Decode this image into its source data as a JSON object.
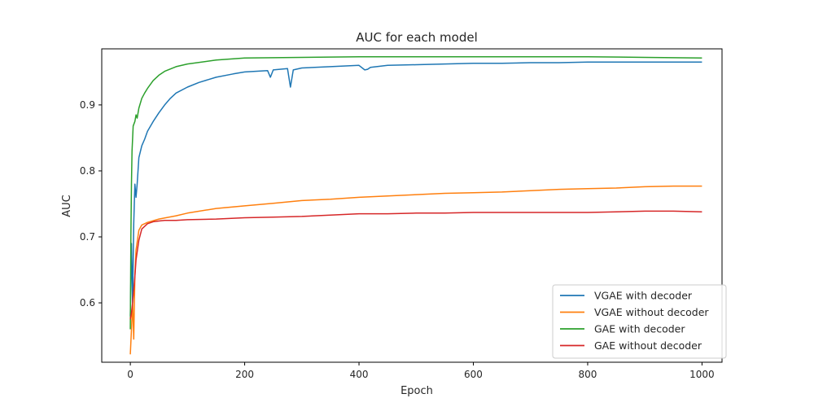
{
  "chart_data": {
    "type": "line",
    "title": "AUC for each model",
    "xlabel": "Epoch",
    "ylabel": "AUC",
    "xlim": [
      -50,
      1035
    ],
    "ylim": [
      0.51,
      0.985
    ],
    "xticks": [
      0,
      200,
      400,
      600,
      800,
      1000
    ],
    "yticks": [
      0.6,
      0.7,
      0.8,
      0.9
    ],
    "grid": false,
    "legend_position": "lower-right",
    "series": [
      {
        "name": "VGAE with decoder",
        "color": "#1f77b4",
        "x": [
          0,
          2,
          4,
          6,
          8,
          10,
          12,
          15,
          20,
          25,
          30,
          40,
          50,
          60,
          70,
          80,
          100,
          120,
          150,
          180,
          200,
          240,
          245,
          250,
          275,
          280,
          285,
          300,
          350,
          400,
          410,
          415,
          420,
          450,
          500,
          550,
          600,
          650,
          700,
          750,
          800,
          850,
          900,
          950,
          1000
        ],
        "y": [
          0.58,
          0.69,
          0.6,
          0.72,
          0.78,
          0.76,
          0.78,
          0.82,
          0.838,
          0.848,
          0.86,
          0.875,
          0.888,
          0.9,
          0.91,
          0.918,
          0.927,
          0.934,
          0.942,
          0.947,
          0.95,
          0.952,
          0.942,
          0.953,
          0.955,
          0.927,
          0.953,
          0.956,
          0.958,
          0.96,
          0.953,
          0.954,
          0.957,
          0.96,
          0.961,
          0.962,
          0.963,
          0.963,
          0.964,
          0.964,
          0.965,
          0.965,
          0.965,
          0.965,
          0.965
        ]
      },
      {
        "name": "VGAE without decoder",
        "color": "#ff7f0e",
        "x": [
          0,
          2,
          4,
          6,
          8,
          10,
          15,
          20,
          30,
          50,
          80,
          100,
          150,
          200,
          250,
          300,
          350,
          400,
          450,
          500,
          550,
          600,
          650,
          700,
          750,
          800,
          850,
          900,
          950,
          1000
        ],
        "y": [
          0.522,
          0.56,
          0.6,
          0.545,
          0.64,
          0.68,
          0.71,
          0.718,
          0.722,
          0.727,
          0.732,
          0.736,
          0.743,
          0.747,
          0.751,
          0.755,
          0.757,
          0.76,
          0.762,
          0.764,
          0.766,
          0.767,
          0.768,
          0.77,
          0.772,
          0.773,
          0.774,
          0.776,
          0.777,
          0.777
        ]
      },
      {
        "name": "GAE with decoder",
        "color": "#2ca02c",
        "x": [
          0,
          1,
          2,
          3,
          5,
          8,
          10,
          12,
          15,
          20,
          25,
          30,
          40,
          50,
          60,
          80,
          100,
          150,
          200,
          300,
          400,
          500,
          600,
          700,
          800,
          900,
          1000
        ],
        "y": [
          0.56,
          0.7,
          0.78,
          0.83,
          0.868,
          0.875,
          0.885,
          0.88,
          0.895,
          0.91,
          0.918,
          0.925,
          0.937,
          0.945,
          0.951,
          0.958,
          0.962,
          0.968,
          0.971,
          0.972,
          0.973,
          0.973,
          0.973,
          0.973,
          0.973,
          0.972,
          0.971
        ]
      },
      {
        "name": "GAE without decoder",
        "color": "#d62728",
        "x": [
          0,
          2,
          4,
          6,
          8,
          10,
          15,
          20,
          30,
          40,
          50,
          60,
          80,
          100,
          150,
          200,
          250,
          300,
          350,
          400,
          450,
          500,
          550,
          600,
          650,
          700,
          750,
          800,
          850,
          900,
          950,
          1000
        ],
        "y": [
          0.575,
          0.585,
          0.6,
          0.62,
          0.64,
          0.665,
          0.695,
          0.712,
          0.72,
          0.723,
          0.724,
          0.725,
          0.725,
          0.726,
          0.727,
          0.729,
          0.73,
          0.731,
          0.733,
          0.735,
          0.735,
          0.736,
          0.736,
          0.737,
          0.737,
          0.737,
          0.737,
          0.737,
          0.738,
          0.739,
          0.739,
          0.738
        ]
      }
    ]
  }
}
